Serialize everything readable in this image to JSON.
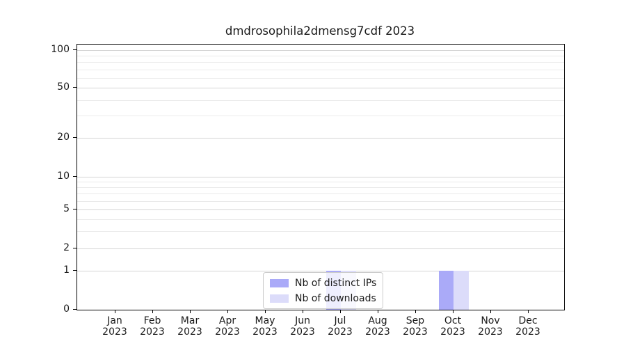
{
  "chart_data": {
    "type": "bar",
    "title": "dmdrosophila2dmensg7cdf 2023",
    "months": [
      "Jan",
      "Feb",
      "Mar",
      "Apr",
      "May",
      "Jun",
      "Jul",
      "Aug",
      "Sep",
      "Oct",
      "Nov",
      "Dec"
    ],
    "year": "2023",
    "series": [
      {
        "name": "Nb of distinct IPs",
        "color": "#aaaaf8",
        "values": [
          0,
          0,
          0,
          0,
          0,
          0,
          1,
          0,
          0,
          1,
          0,
          0
        ]
      },
      {
        "name": "Nb of downloads",
        "color": "#dcdcfa",
        "values": [
          0,
          0,
          0,
          0,
          0,
          0,
          1,
          0,
          0,
          1,
          0,
          0
        ]
      }
    ],
    "y_axis": {
      "tick_labels": [
        100,
        50,
        20,
        10,
        5,
        2,
        1,
        0
      ],
      "minor_gridlines": [
        90,
        80,
        70,
        60,
        40,
        30,
        9,
        8,
        7,
        6,
        4,
        3
      ],
      "scale": "log from 1 to 100 with linear segment from 0 to 1",
      "range": [
        0,
        100
      ]
    },
    "x_axis": {
      "tick_label_format": "Month over Year, two lines"
    },
    "grid": true,
    "legend": {
      "position": "inside lower center",
      "items": [
        "Nb of distinct IPs",
        "Nb of downloads"
      ]
    },
    "colors": {
      "distinct_ips": "#aaaaf8",
      "downloads": "#dcdcfa",
      "grid_major": "#d4d4d4",
      "grid_minor": "#eaeaea",
      "axis": "#000000",
      "text": "#1a1a1a"
    }
  }
}
